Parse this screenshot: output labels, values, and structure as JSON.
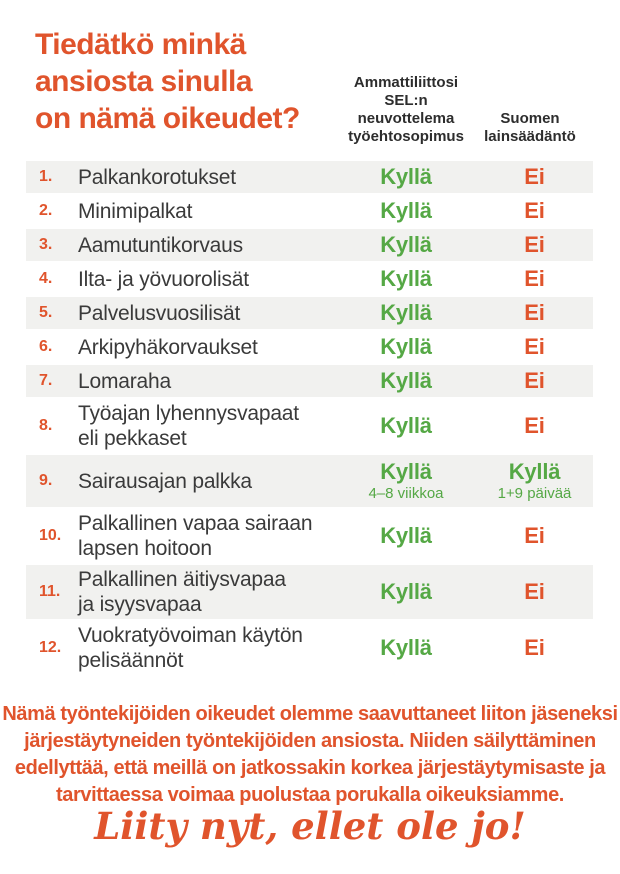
{
  "page": {
    "title_lines": [
      "Tiedätkö minkä",
      "ansiosta sinulla",
      "on nämä oikeudet?"
    ],
    "columns": {
      "tes_lines": [
        "Ammattiliittosi",
        "SEL:n",
        "neuvottelema",
        "työehtosopimus"
      ],
      "law_lines": [
        "Suomen",
        "lainsäädäntö"
      ]
    },
    "rows": [
      {
        "num": "1.",
        "label": "Palkankorotukset",
        "tes": "Kyllä",
        "law": "Ei"
      },
      {
        "num": "2.",
        "label": "Minimipalkat",
        "tes": "Kyllä",
        "law": "Ei"
      },
      {
        "num": "3.",
        "label": "Aamutuntikorvaus",
        "tes": "Kyllä",
        "law": "Ei"
      },
      {
        "num": "4.",
        "label": "Ilta- ja yövuorolisät",
        "tes": "Kyllä",
        "law": "Ei"
      },
      {
        "num": "5.",
        "label": "Palvelusvuosilisät",
        "tes": "Kyllä",
        "law": "Ei"
      },
      {
        "num": "6.",
        "label": "Arkipyhäkorvaukset",
        "tes": "Kyllä",
        "law": "Ei"
      },
      {
        "num": "7.",
        "label": "Lomaraha",
        "tes": "Kyllä",
        "law": "Ei"
      },
      {
        "num": "8.",
        "label": "Työajan lyhennysvapaat",
        "label2": "eli pekkaset",
        "tes": "Kyllä",
        "law": "Ei"
      },
      {
        "num": "9.",
        "label": "Sairausajan palkka",
        "tes": "Kyllä",
        "tes_note": "4–8 viikkoa",
        "law": "Kyllä",
        "law_note": "1+9 päivää"
      },
      {
        "num": "10.",
        "label": "Palkallinen vapaa sairaan",
        "label2": "lapsen hoitoon",
        "tes": "Kyllä",
        "law": "Ei"
      },
      {
        "num": "11.",
        "label": "Palkallinen äitiysvapaa",
        "label2": "ja isyysvapaa",
        "tes": "Kyllä",
        "law": "Ei"
      },
      {
        "num": "12.",
        "label": "Vuokratyövoiman käytön",
        "label2": "pelisäännöt",
        "tes": "Kyllä",
        "law": "Ei"
      }
    ],
    "footer": {
      "paragraph_lines": [
        "Nämä työntekijöiden oikeudet olemme saavuttaneet liiton jäseneksi",
        "järjestäytyneiden työntekijöiden ansiosta. Niiden säilyttäminen",
        "edellyttää, että meillä on jatkossakin korkea järjestäytymisaste ja",
        "tarvittaessa voimaa puolustaa porukalla oikeuksiamme."
      ],
      "cta": "Liity nyt, ellet ole jo!"
    },
    "colors": {
      "orange": "#E0542C",
      "green": "#55A845",
      "dark_text": "#3A3A3A",
      "header_text": "#2D2D2D",
      "row_stripe": "#F1F1EF"
    },
    "answer_yes": "Kyllä",
    "answer_no": "Ei"
  }
}
